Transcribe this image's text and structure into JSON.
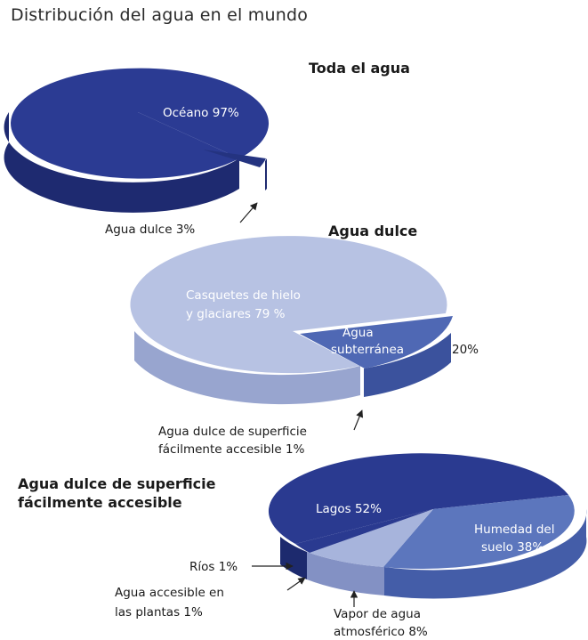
{
  "page_title": "Distribución del agua en el mundo",
  "chart_data": [
    {
      "type": "pie",
      "title": "Toda el agua",
      "slices": [
        {
          "label": "Océano 97%",
          "value": 97,
          "color": "#2b3b93"
        },
        {
          "label": "Agua dulce 3%",
          "value": 3,
          "color": "#2b3b93"
        }
      ]
    },
    {
      "type": "pie",
      "title": "Agua dulce",
      "slices": [
        {
          "label": "Casquetes de hielo y glaciares 79 %",
          "value": 79,
          "color": "#b7c2e3"
        },
        {
          "label": "Agua subterránea 20%",
          "value": 20,
          "color": "#4f68b4"
        },
        {
          "label": "Agua dulce de superficie fácilmente accesible 1%",
          "value": 1,
          "color": "#b7c2e3"
        }
      ]
    },
    {
      "type": "pie",
      "title": "Agua dulce de superficie fácilmente accesible",
      "slices": [
        {
          "label": "Lagos 52%",
          "value": 52,
          "color": "#2a3a90"
        },
        {
          "label": "Humedad del suelo 38%",
          "value": 38,
          "color": "#5c76bd"
        },
        {
          "label": "Vapor de agua atmosférico 8%",
          "value": 8,
          "color": "#a7b4dc"
        },
        {
          "label": "Ríos 1%",
          "value": 1,
          "color": "#2a3a90"
        },
        {
          "label": "Agua accesible en las plantas 1%",
          "value": 1,
          "color": "#2a3a90"
        }
      ]
    }
  ],
  "labels": {
    "pie1_ocean": "Océano 97%",
    "pie1_fresh": "Agua dulce 3%",
    "pie2_ice_l1": "Casquetes de hielo",
    "pie2_ice_l2": "y glaciares 79 %",
    "pie2_ground_l1": "Agua",
    "pie2_ground_l2": "subterránea",
    "pie2_ground_pct": "20%",
    "pie2_surface_l1": "Agua dulce de superficie",
    "pie2_surface_l2": "fácilmente accesible 1%",
    "pie3_title_l1": "Agua dulce de superficie",
    "pie3_title_l2": "fácilmente accesible",
    "pie3_lakes": "Lagos 52%",
    "pie3_soil_l1": "Humedad del",
    "pie3_soil_l2": "suelo 38%",
    "pie3_rivers": "Ríos 1%",
    "pie3_plants_l1": "Agua accesible en",
    "pie3_plants_l2": "las plantas 1%",
    "pie3_vapor_l1": "Vapor de agua",
    "pie3_vapor_l2": "atmosférico 8%"
  }
}
